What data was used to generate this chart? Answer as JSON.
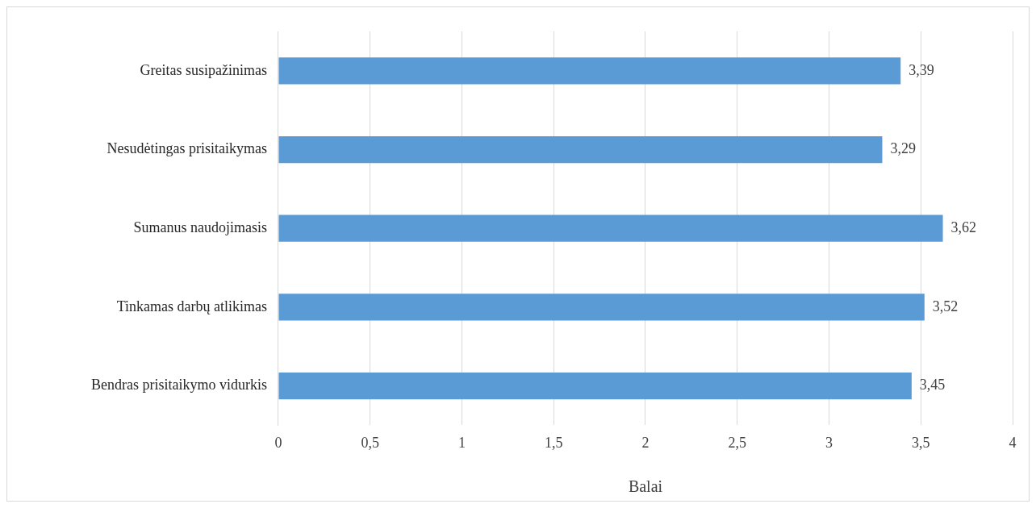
{
  "chart_data": {
    "type": "bar",
    "orientation": "horizontal",
    "categories": [
      "Greitas susipažinimas",
      "Nesudėtingas prisitaikymas",
      "Sumanus naudojimasis",
      "Tinkamas darbų atlikimas",
      "Bendras prisitaikymo vidurkis"
    ],
    "values": [
      3.39,
      3.29,
      3.62,
      3.52,
      3.45
    ],
    "value_labels": [
      "3,39",
      "3,29",
      "3,62",
      "3,52",
      "3,45"
    ],
    "color": "#5b9bd5",
    "xlabel": "Balai",
    "xlim": [
      0,
      4
    ],
    "xticks": [
      0,
      {
        "value": 0.5,
        "label": "0,5"
      },
      1,
      {
        "value": 1.5,
        "label": "1,5"
      },
      2,
      {
        "value": 2.5,
        "label": "2,5"
      },
      3,
      {
        "value": 3.5,
        "label": "3,5"
      },
      4
    ],
    "grid": "x"
  }
}
